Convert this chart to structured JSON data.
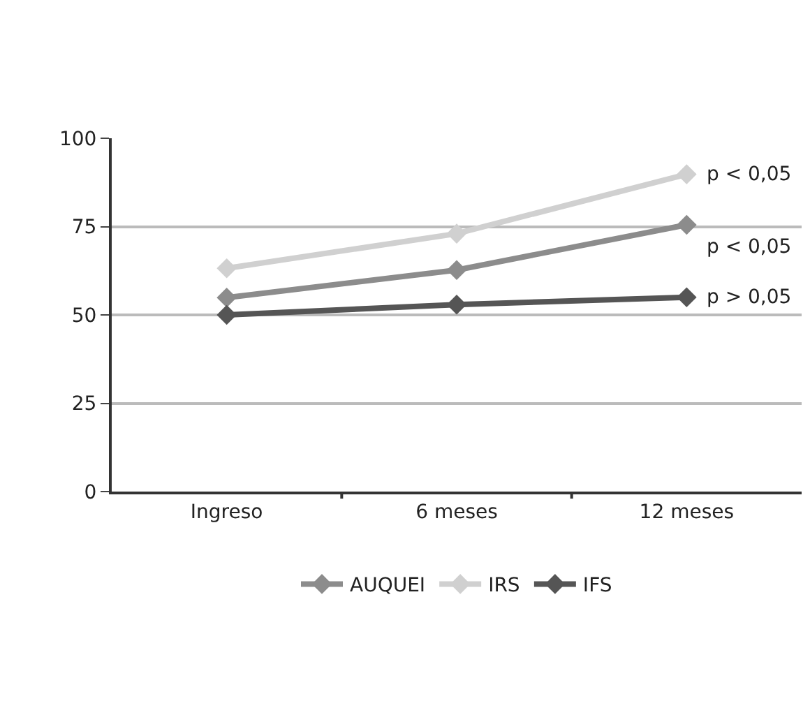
{
  "chart_data": {
    "type": "line",
    "categories": [
      "Ingreso",
      "6 meses",
      "12 meses"
    ],
    "series": [
      {
        "name": "AUQUEI",
        "color": "#8c8c8c",
        "values": [
          54.9,
          62.7,
          75.5
        ]
      },
      {
        "name": "IRS",
        "color": "#d0d0d0",
        "values": [
          63.2,
          73,
          89.8
        ]
      },
      {
        "name": "IFS",
        "color": "#555555",
        "values": [
          50,
          52.9,
          55
        ]
      }
    ],
    "ylim": [
      0,
      100
    ],
    "yticks": [
      0,
      25,
      50,
      75,
      100
    ],
    "grid": "y",
    "legend": "bottom",
    "marker": "diamond",
    "line_style": "solid",
    "annotations": [
      {
        "text": "p < 0,05",
        "x": "12 meses",
        "y": 89.8
      },
      {
        "text": "p < 0,05",
        "x": "12 meses",
        "y": 75.5
      },
      {
        "text": "p > 0,05",
        "x": "12 meses",
        "y": 55
      }
    ]
  }
}
